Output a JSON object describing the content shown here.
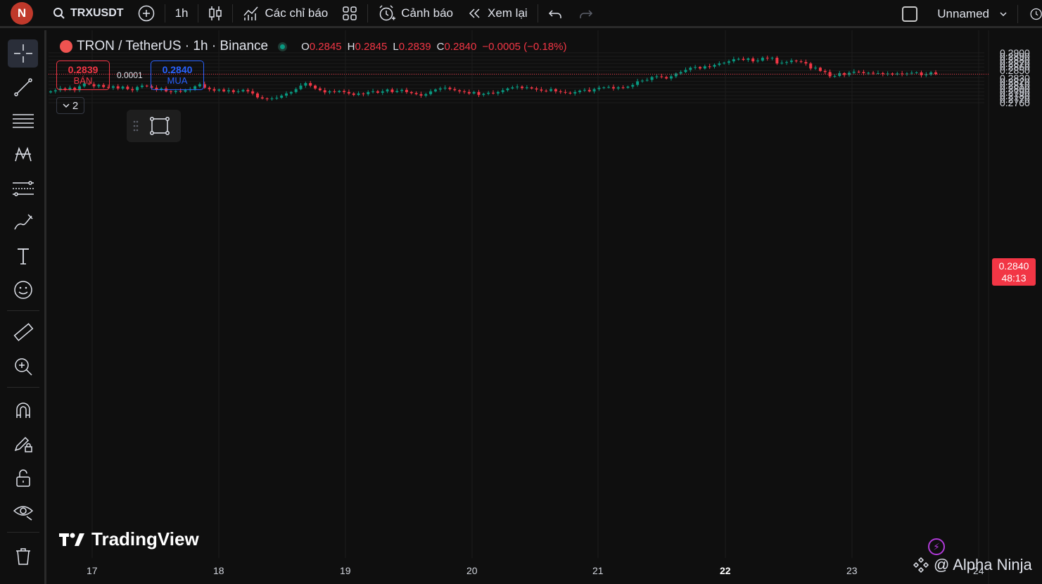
{
  "header": {
    "avatar_letter": "N",
    "symbol": "TRXUSDT",
    "interval": "1h",
    "indicators_label": "Các chỉ báo",
    "alerts_label": "Cảnh báo",
    "replay_label": "Xem lại",
    "layout_name": "Unnamed"
  },
  "legend": {
    "title": "TRON / TetherUS · 1h · Binance",
    "o_key": "O",
    "o_val": "0.2845",
    "h_key": "H",
    "h_val": "0.2845",
    "l_key": "L",
    "l_val": "0.2839",
    "c_key": "C",
    "c_val": "0.2840",
    "change": "−0.0005 (−0.18%)"
  },
  "trade": {
    "sell_price": "0.2839",
    "sell_label": "BÁN",
    "spread": "0.0001",
    "buy_price": "0.2840",
    "buy_label": "MUA",
    "collapse_count": "2"
  },
  "price_axis": [
    "0.2900",
    "0.2890",
    "0.2880",
    "0.2870",
    "0.2860",
    "0.2850",
    "0.2840",
    "0.2830",
    "0.2820",
    "0.2810",
    "0.2800",
    "0.2790",
    "0.2780",
    "0.2770",
    "0.2760"
  ],
  "current_price": {
    "price": "0.2840",
    "countdown": "48:13"
  },
  "time_axis": [
    {
      "label": "17",
      "bold": false
    },
    {
      "label": "18",
      "bold": false
    },
    {
      "label": "19",
      "bold": false
    },
    {
      "label": "20",
      "bold": false
    },
    {
      "label": "21",
      "bold": false
    },
    {
      "label": "22",
      "bold": true
    },
    {
      "label": "23",
      "bold": false
    },
    {
      "label": "24",
      "bold": false
    }
  ],
  "watermarks": {
    "tradingview": "TradingView",
    "ninja": "@ Alpha Ninja"
  },
  "colors": {
    "up": "#089981",
    "down": "#f23645",
    "background": "#0f0f0f",
    "grid": "#1c1c1c"
  },
  "chart_data": {
    "type": "candlestick",
    "title": "TRON / TetherUS · 1h · Binance",
    "categories_start": "17",
    "ylim": [
      0.2758,
      0.2904
    ],
    "grid": true,
    "closes": [
      0.2792,
      0.2795,
      0.28,
      0.2796,
      0.2802,
      0.2795,
      0.2806,
      0.2814,
      0.2812,
      0.2806,
      0.281,
      0.2804,
      0.2802,
      0.2806,
      0.28,
      0.2805,
      0.2798,
      0.2795,
      0.2804,
      0.2808,
      0.2806,
      0.2802,
      0.2796,
      0.28,
      0.2792,
      0.279,
      0.2793,
      0.2791,
      0.2795,
      0.2798,
      0.2806,
      0.2812,
      0.2802,
      0.2798,
      0.2794,
      0.2797,
      0.2792,
      0.2795,
      0.279,
      0.2792,
      0.2796,
      0.2792,
      0.2786,
      0.2775,
      0.2772,
      0.2771,
      0.2772,
      0.2774,
      0.278,
      0.2786,
      0.279,
      0.2798,
      0.2808,
      0.2815,
      0.2808,
      0.28,
      0.2795,
      0.2789,
      0.2792,
      0.279,
      0.2793,
      0.279,
      0.2786,
      0.2782,
      0.2786,
      0.2784,
      0.279,
      0.2792,
      0.2788,
      0.2792,
      0.2797,
      0.279,
      0.2793,
      0.2796,
      0.279,
      0.2787,
      0.2784,
      0.278,
      0.2784,
      0.2792,
      0.2797,
      0.28,
      0.2802,
      0.2798,
      0.2795,
      0.2792,
      0.279,
      0.2786,
      0.279,
      0.2782,
      0.2785,
      0.2788,
      0.2786,
      0.279,
      0.2795,
      0.28,
      0.2803,
      0.2805,
      0.2801,
      0.2803,
      0.28,
      0.2797,
      0.2794,
      0.2793,
      0.2798,
      0.2792,
      0.279,
      0.2788,
      0.2786,
      0.279,
      0.2794,
      0.2796,
      0.2792,
      0.2798,
      0.2802,
      0.2803,
      0.2804,
      0.28,
      0.2803,
      0.2802,
      0.2805,
      0.281,
      0.282,
      0.2822,
      0.2824,
      0.2832,
      0.2834,
      0.2832,
      0.2828,
      0.2834,
      0.2842,
      0.2846,
      0.2852,
      0.2858,
      0.286,
      0.2856,
      0.2862,
      0.2861,
      0.2866,
      0.287,
      0.2872,
      0.2876,
      0.2882,
      0.2883,
      0.288,
      0.2884,
      0.2876,
      0.2878,
      0.2886,
      0.2884,
      0.2886,
      0.287,
      0.2872,
      0.2874,
      0.2878,
      0.2876,
      0.2874,
      0.287,
      0.2856,
      0.2858,
      0.2849,
      0.2846,
      0.2834,
      0.2835,
      0.2843,
      0.2838,
      0.2844,
      0.2847,
      0.2846,
      0.2843,
      0.2844,
      0.2842,
      0.2843,
      0.284,
      0.2842,
      0.2839,
      0.2842,
      0.284,
      0.2842,
      0.2844,
      0.2845,
      0.2837,
      0.2839,
      0.2845,
      0.284
    ]
  }
}
